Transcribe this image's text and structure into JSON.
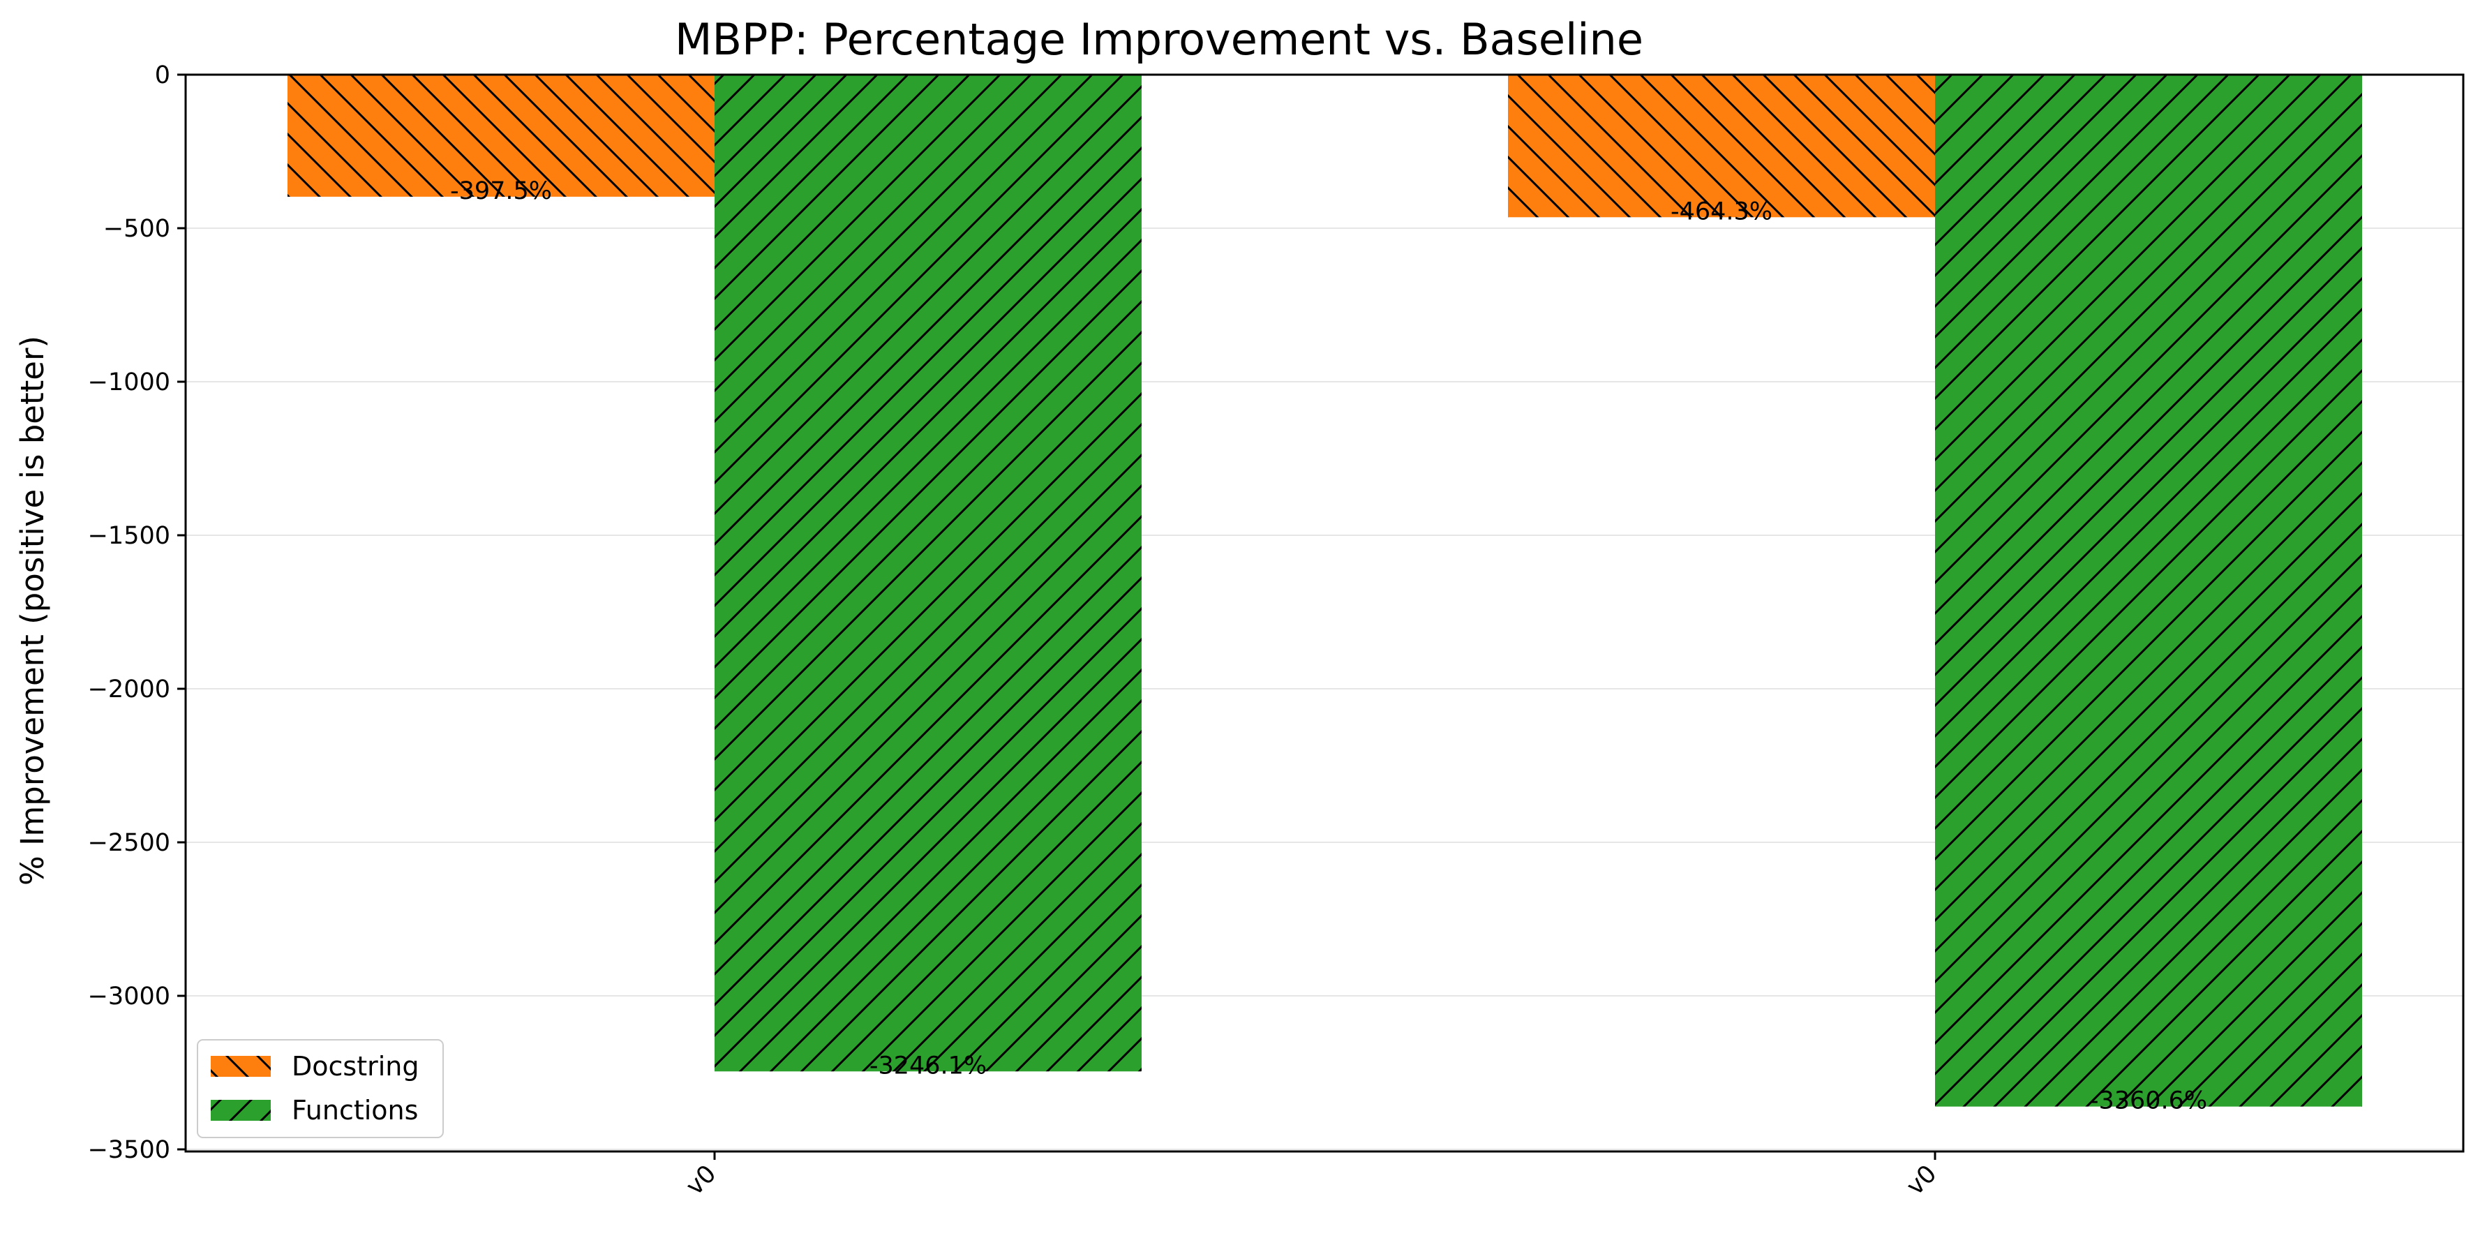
{
  "chart_data": {
    "type": "bar",
    "title": "MBPP: Percentage Improvement vs. Baseline",
    "xlabel": "",
    "ylabel": "% Improvement (positive is better)",
    "categories": [
      "v0",
      "v0"
    ],
    "series": [
      {
        "name": "Docstring",
        "values": [
          -397.5,
          -464.3
        ],
        "labels": [
          "-397.5%",
          "-464.3%"
        ],
        "color": "#ff7f0e",
        "hatch": "backslash"
      },
      {
        "name": "Functions",
        "values": [
          -3246.1,
          -3360.6
        ],
        "labels": [
          "-3246.1%",
          "-3360.6%"
        ],
        "color": "#2ca02c",
        "hatch": "slash"
      }
    ],
    "ylim": [
      -3520,
      0
    ],
    "yticks": [
      0,
      -500,
      -1000,
      -1500,
      -2000,
      -2500,
      -3000,
      -3500
    ],
    "ytick_labels": [
      "0",
      "−500",
      "−1000",
      "−1500",
      "−2000",
      "−2500",
      "−3000",
      "−3500"
    ],
    "grid": "horizontal",
    "legend_position": "lower-left"
  }
}
